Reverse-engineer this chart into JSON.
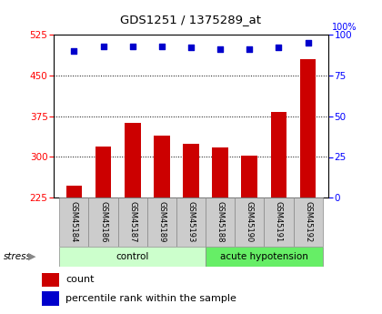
{
  "title": "GDS1251 / 1375289_at",
  "samples": [
    "GSM45184",
    "GSM45186",
    "GSM45187",
    "GSM45189",
    "GSM45193",
    "GSM45188",
    "GSM45190",
    "GSM45191",
    "GSM45192"
  ],
  "counts": [
    248,
    320,
    362,
    340,
    325,
    318,
    303,
    383,
    480
  ],
  "percentiles": [
    90,
    93,
    93,
    93,
    92,
    91,
    91,
    92,
    95
  ],
  "bar_color": "#cc0000",
  "dot_color": "#0000cc",
  "ylim_left": [
    225,
    525
  ],
  "ylim_right": [
    0,
    100
  ],
  "yticks_left": [
    225,
    300,
    375,
    450,
    525
  ],
  "yticks_right": [
    0,
    25,
    50,
    75,
    100
  ],
  "grid_ticks": [
    300,
    375,
    450
  ],
  "control_color": "#ccffcc",
  "acute_color": "#66ee66",
  "label_bg_color": "#cccccc",
  "stress_label": "stress",
  "legend_count": "count",
  "legend_percentile": "percentile rank within the sample",
  "n_control": 5,
  "n_acute": 4
}
